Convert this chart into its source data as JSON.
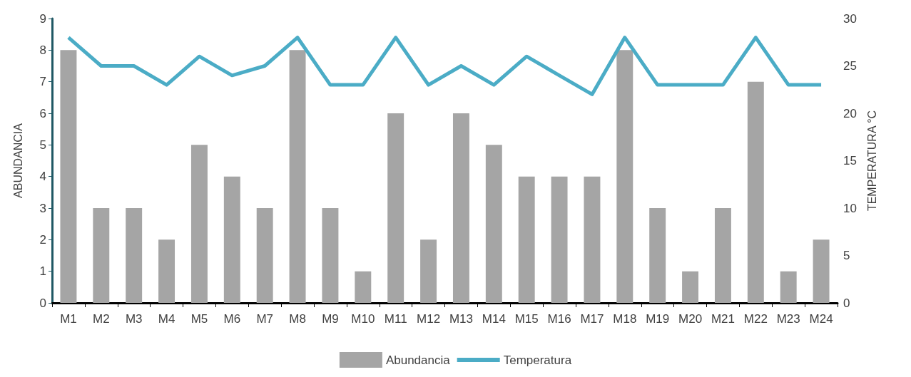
{
  "chart_data": {
    "type": "bar",
    "ylabel": "ABUNDANCIA",
    "y2label": "TEMPERATURA °C",
    "categories": [
      "M1",
      "M2",
      "M3",
      "M4",
      "M5",
      "M6",
      "M7",
      "M8",
      "M9",
      "M10",
      "M11",
      "M12",
      "M13",
      "M14",
      "M15",
      "M16",
      "M17",
      "M18",
      "M19",
      "M20",
      "M21",
      "M22",
      "M23",
      "M24"
    ],
    "series": [
      {
        "name": "Abundancia",
        "color": "#a5a5a5",
        "values": [
          8,
          3,
          3,
          2,
          5,
          4,
          3,
          8,
          3,
          1,
          6,
          2,
          6,
          5,
          4,
          4,
          4,
          8,
          3,
          1,
          3,
          7,
          1,
          2
        ]
      },
      {
        "name": "Temperatura",
        "type": "line",
        "axis": "y2",
        "color": "#4bacc6",
        "values": [
          28,
          25,
          25,
          23,
          26,
          24,
          25,
          28,
          23,
          23,
          28,
          23,
          25,
          23,
          26,
          24,
          22,
          28,
          23,
          23,
          23,
          28,
          23,
          23
        ]
      }
    ],
    "ylim": [
      0,
      9
    ],
    "yticks": [
      0,
      1,
      2,
      3,
      4,
      5,
      6,
      7,
      8,
      9
    ],
    "y2lim": [
      0,
      30
    ],
    "y2ticks": [
      0,
      5,
      10,
      15,
      20,
      25,
      30
    ],
    "grid": false,
    "legend": "bottom",
    "marker": "none",
    "line_style": "solid"
  }
}
